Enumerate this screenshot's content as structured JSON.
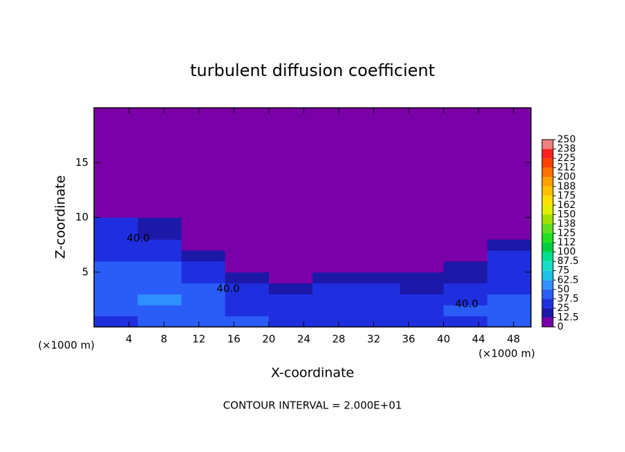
{
  "chart_data": {
    "type": "contour",
    "title": "turbulent diffusion coefficient",
    "xlabel": "X-coordinate",
    "ylabel": "Z-coordinate",
    "x_unit": "(×1000 m)",
    "y_unit": "(×1000 m)",
    "footer": "CONTOUR INTERVAL = 2.000E+01",
    "xlim": [
      0,
      50
    ],
    "ylim": [
      0,
      20
    ],
    "xticks": [
      4,
      8,
      12,
      16,
      20,
      24,
      28,
      32,
      36,
      40,
      44,
      48
    ],
    "yticks": [
      5,
      10,
      15
    ],
    "x_edges": [
      0,
      5,
      10,
      15,
      20,
      25,
      30,
      35,
      40,
      45,
      50
    ],
    "y_edges": [
      0,
      1,
      2,
      3,
      4,
      5,
      6,
      7,
      8,
      10,
      20
    ],
    "z": [
      [
        35,
        40,
        45,
        40,
        30,
        30,
        35,
        30,
        35,
        40
      ],
      [
        40,
        45,
        45,
        35,
        30,
        25,
        30,
        30,
        40,
        45
      ],
      [
        40,
        50,
        45,
        35,
        25,
        30,
        30,
        25,
        30,
        45
      ],
      [
        40,
        45,
        40,
        30,
        20,
        25,
        25,
        20,
        25,
        35
      ],
      [
        40,
        45,
        30,
        20,
        10,
        20,
        15,
        15,
        20,
        35
      ],
      [
        40,
        40,
        25,
        10,
        10,
        10,
        10,
        10,
        15,
        35
      ],
      [
        35,
        35,
        15,
        5,
        5,
        5,
        5,
        5,
        10,
        30
      ],
      [
        35,
        30,
        10,
        0,
        0,
        0,
        0,
        0,
        5,
        20
      ],
      [
        25,
        20,
        5,
        0,
        0,
        0,
        0,
        0,
        0,
        5
      ],
      [
        0,
        0,
        0,
        0,
        0,
        0,
        0,
        0,
        0,
        0
      ]
    ],
    "annotations": [
      "40.0",
      "40.0",
      "40.0"
    ],
    "colorbar": {
      "levels": [
        0,
        12.5,
        25,
        37.5,
        50,
        62.5,
        75,
        87.5,
        100,
        112,
        125,
        138,
        150,
        162,
        175,
        188,
        200,
        212,
        225,
        238,
        250
      ],
      "colors": [
        "#7a00a8",
        "#1c18a8",
        "#1f2fe0",
        "#2a5cf8",
        "#2f90ff",
        "#1cc0e8",
        "#18e0c8",
        "#00e090",
        "#00d040",
        "#20e020",
        "#60e020",
        "#a0e000",
        "#e0f000",
        "#ffe000",
        "#ffc000",
        "#ffa000",
        "#ff7000",
        "#ff4000",
        "#ff2020",
        "#f08080"
      ]
    }
  }
}
